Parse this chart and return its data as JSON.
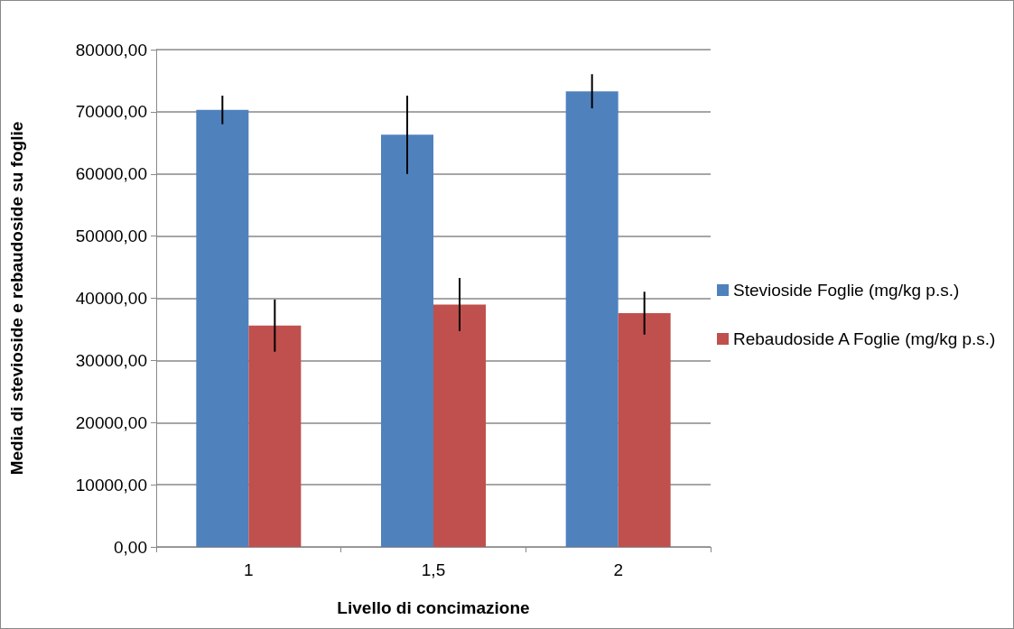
{
  "chart_data": {
    "type": "bar",
    "xlabel": "Livello di concimazione",
    "ylabel": "Media di stevioside e rebaudoside su foglie",
    "categories": [
      "1",
      "1,5",
      "2"
    ],
    "series": [
      {
        "name": "Stevioside Foglie (mg/kg p.s.)",
        "color": "#4f81bd",
        "values": [
          70300,
          66300,
          73300
        ],
        "errors": [
          2300,
          6300,
          2750
        ]
      },
      {
        "name": "Rebaudoside A Foglie (mg/kg p.s.)",
        "color": "#c0504d",
        "values": [
          35600,
          39000,
          37600
        ],
        "errors": [
          4200,
          4250,
          3450
        ]
      }
    ],
    "ylim": [
      0,
      80000
    ],
    "yticks": [
      {
        "value": 0,
        "label": "0,00"
      },
      {
        "value": 10000,
        "label": "10000,00"
      },
      {
        "value": 20000,
        "label": "20000,00"
      },
      {
        "value": 30000,
        "label": "30000,00"
      },
      {
        "value": 40000,
        "label": "40000,00"
      },
      {
        "value": 50000,
        "label": "50000,00"
      },
      {
        "value": 60000,
        "label": "60000,00"
      },
      {
        "value": 70000,
        "label": "70000,00"
      },
      {
        "value": 80000,
        "label": "80000,00"
      }
    ],
    "grid": "y",
    "legend": "right"
  }
}
